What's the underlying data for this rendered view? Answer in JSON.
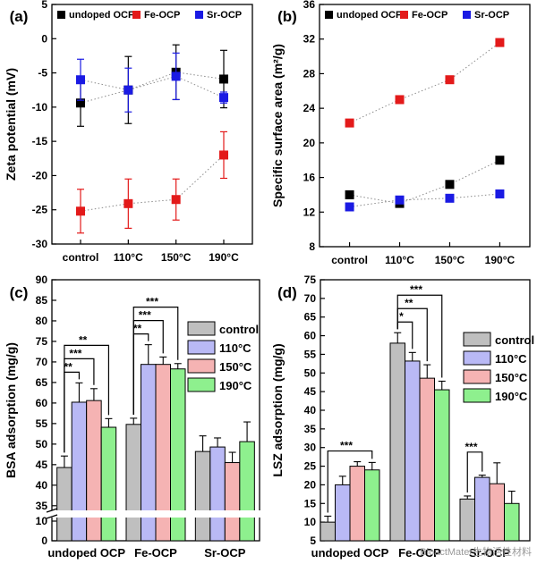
{
  "chart_data": [
    {
      "type": "scatter",
      "panel_label": "(a)",
      "title": "",
      "xlabel": "",
      "ylabel": "Zeta potential (mV)",
      "categories": [
        "control",
        "110°C",
        "150°C",
        "190°C"
      ],
      "ylim": [
        -30,
        5
      ],
      "yticks": [
        -30,
        -25,
        -20,
        -15,
        -10,
        -5,
        0,
        5
      ],
      "ytick_labels": [
        "-30",
        "-25",
        "-20",
        "-15",
        "-10",
        "-5",
        "0",
        "5"
      ],
      "legend_position": "top",
      "series": [
        {
          "name": "undoped OCP",
          "color": "#000000",
          "values": [
            -9.4,
            -7.5,
            -4.9,
            -5.9
          ],
          "errors": [
            3.4,
            4.9,
            4.0,
            4.2
          ]
        },
        {
          "name": "Fe-OCP",
          "color": "#e31a1a",
          "values": [
            -25.2,
            -24.1,
            -23.5,
            -17.0
          ],
          "errors": [
            3.2,
            3.6,
            3.0,
            3.4
          ]
        },
        {
          "name": "Sr-OCP",
          "color": "#1a1ae3",
          "values": [
            -6.0,
            -7.5,
            -5.5,
            -8.6
          ],
          "errors": [
            3.0,
            3.2,
            3.4,
            0.8
          ]
        }
      ]
    },
    {
      "type": "scatter",
      "panel_label": "(b)",
      "title": "",
      "xlabel": "",
      "ylabel": "Specific surface area (m²/g)",
      "categories": [
        "control",
        "110°C",
        "150°C",
        "190°C"
      ],
      "ylim": [
        8,
        36
      ],
      "yticks": [
        8,
        12,
        16,
        20,
        24,
        28,
        32,
        36
      ],
      "ytick_labels": [
        "8",
        "12",
        "16",
        "20",
        "24",
        "28",
        "32",
        "36"
      ],
      "legend_position": "top",
      "series": [
        {
          "name": "undoped OCP",
          "color": "#000000",
          "values": [
            14.0,
            13.0,
            15.2,
            18.0
          ]
        },
        {
          "name": "Fe-OCP",
          "color": "#e31a1a",
          "values": [
            22.3,
            25.0,
            27.3,
            31.6
          ]
        },
        {
          "name": "Sr-OCP",
          "color": "#1a1ae3",
          "values": [
            12.6,
            13.4,
            13.6,
            14.1
          ]
        }
      ]
    },
    {
      "type": "bar",
      "panel_label": "(c)",
      "title": "",
      "xlabel": "",
      "ylabel": "BSA adsorption (mg/g)",
      "categories": [
        "undoped OCP",
        "Fe-OCP",
        "Sr-OCP"
      ],
      "ylim": [
        0,
        90
      ],
      "axis_break": [
        10,
        33
      ],
      "yticks": [
        0,
        10,
        35,
        40,
        45,
        50,
        55,
        60,
        65,
        70,
        75,
        80,
        85,
        90
      ],
      "ytick_labels": [
        "0",
        "10",
        "35",
        "40",
        "45",
        "50",
        "55",
        "60",
        "65",
        "70",
        "75",
        "80",
        "85",
        "90"
      ],
      "legend_position": "top-right",
      "series": [
        {
          "name": "control",
          "color": "#bfbfbf",
          "values": [
            44.3,
            54.8,
            48.2
          ],
          "errors": [
            2.8,
            1.5,
            3.8
          ]
        },
        {
          "name": "110°C",
          "color": "#b9b9f5",
          "values": [
            60.2,
            69.4,
            49.3
          ],
          "errors": [
            4.7,
            4.8,
            2.2
          ]
        },
        {
          "name": "150°C",
          "color": "#f5b3b3",
          "values": [
            60.6,
            69.4,
            45.5
          ],
          "errors": [
            2.9,
            1.8,
            2.5
          ]
        },
        {
          "name": "190°C",
          "color": "#8ef08e",
          "values": [
            54.1,
            68.3,
            50.6
          ],
          "errors": [
            2.1,
            1.3,
            4.8
          ]
        }
      ],
      "significance": [
        {
          "group": 0,
          "from": 0,
          "to": 1,
          "label": "**"
        },
        {
          "group": 0,
          "from": 0,
          "to": 2,
          "label": "***"
        },
        {
          "group": 0,
          "from": 0,
          "to": 3,
          "label": "**"
        },
        {
          "group": 1,
          "from": 0,
          "to": 1,
          "label": "**"
        },
        {
          "group": 1,
          "from": 0,
          "to": 2,
          "label": "***"
        },
        {
          "group": 1,
          "from": 0,
          "to": 3,
          "label": "***"
        }
      ]
    },
    {
      "type": "bar",
      "panel_label": "(d)",
      "title": "",
      "xlabel": "",
      "ylabel": "LSZ adsorption (mg/g)",
      "categories": [
        "undoped OCP",
        "Fe-OCP",
        "Sr-OCP"
      ],
      "ylim": [
        5,
        75
      ],
      "yticks": [
        5,
        10,
        15,
        20,
        25,
        30,
        35,
        40,
        45,
        50,
        55,
        60,
        65,
        70,
        75
      ],
      "ytick_labels": [
        "5",
        "10",
        "15",
        "20",
        "25",
        "30",
        "35",
        "40",
        "45",
        "50",
        "55",
        "60",
        "65",
        "70",
        "75"
      ],
      "legend_position": "right",
      "series": [
        {
          "name": "control",
          "color": "#bfbfbf",
          "values": [
            10.0,
            58.0,
            16.2
          ],
          "errors": [
            1.6,
            2.8,
            0.8
          ]
        },
        {
          "name": "110°C",
          "color": "#b9b9f5",
          "values": [
            20.0,
            53.2,
            22.0
          ],
          "errors": [
            2.3,
            2.3,
            0.6
          ]
        },
        {
          "name": "150°C",
          "color": "#f5b3b3",
          "values": [
            25.0,
            48.6,
            20.3
          ],
          "errors": [
            1.2,
            3.6,
            5.6
          ]
        },
        {
          "name": "190°C",
          "color": "#8ef08e",
          "values": [
            24.0,
            45.5,
            15.0
          ],
          "errors": [
            2.0,
            2.3,
            3.3
          ]
        }
      ],
      "significance": [
        {
          "group": 0,
          "from": 0,
          "to": 3,
          "label": "***"
        },
        {
          "group": 1,
          "from": 0,
          "to": 1,
          "label": "*"
        },
        {
          "group": 1,
          "from": 0,
          "to": 2,
          "label": "**"
        },
        {
          "group": 1,
          "from": 0,
          "to": 3,
          "label": "***"
        },
        {
          "group": 2,
          "from": 0,
          "to": 1,
          "label": "***"
        }
      ]
    }
  ],
  "watermark": "BioactMater生物活性材料"
}
